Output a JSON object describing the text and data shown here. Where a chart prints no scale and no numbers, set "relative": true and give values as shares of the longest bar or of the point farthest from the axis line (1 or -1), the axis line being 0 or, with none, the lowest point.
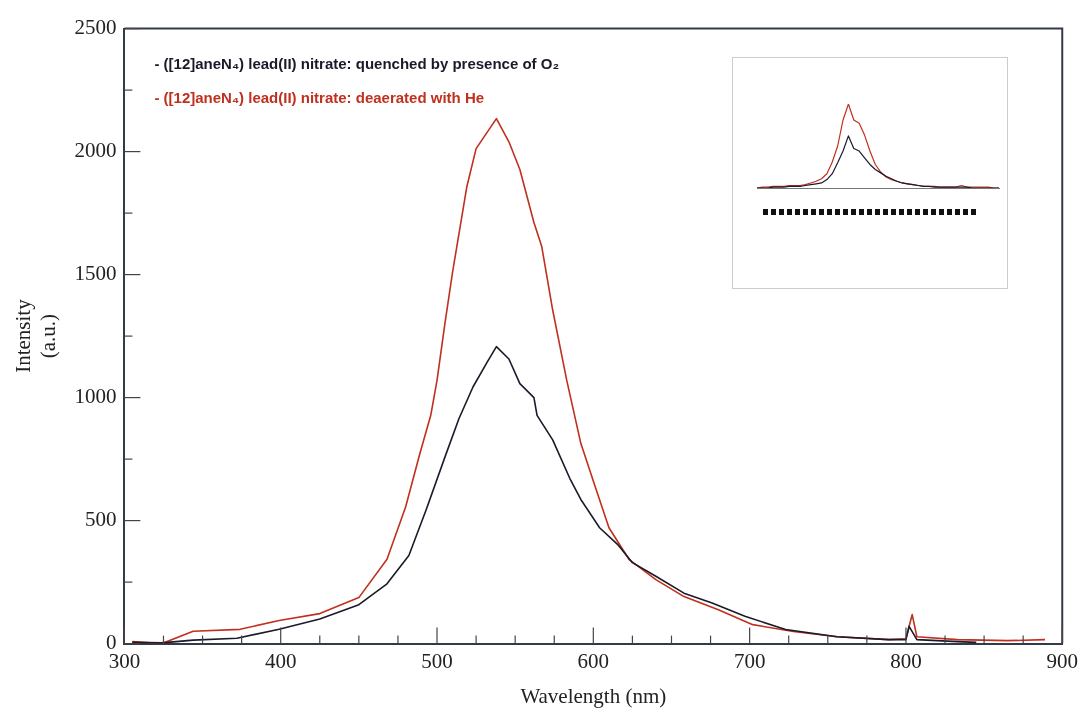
{
  "chart_data": [
    {
      "type": "line",
      "xlabel": "Wavelength (nm)",
      "ylabel": "Intensity\n(a.u.)",
      "xlim": [
        300,
        900
      ],
      "xticks": [
        300,
        {
          "value": 325,
          "label": null
        },
        {
          "value": 350,
          "label": null
        },
        {
          "value": 375,
          "label": null
        },
        400,
        {
          "value": 425,
          "label": null
        },
        {
          "value": 450,
          "label": null
        },
        {
          "value": 475,
          "label": null
        },
        500,
        {
          "value": 525,
          "label": null
        },
        {
          "value": 550,
          "label": null
        },
        {
          "value": 575,
          "label": null
        },
        600,
        {
          "value": 625,
          "label": null
        },
        {
          "value": 650,
          "label": null
        },
        {
          "value": 675,
          "label": null
        },
        700,
        {
          "value": 725,
          "label": null
        },
        {
          "value": 750,
          "label": null
        },
        {
          "value": 775,
          "label": null
        },
        800,
        {
          "value": 825,
          "label": null
        },
        {
          "value": 850,
          "label": null
        },
        {
          "value": 875,
          "label": null
        },
        900
      ],
      "ylim": [
        0,
        2500
      ],
      "yticks": [
        0,
        {
          "value": 250,
          "label": null
        },
        500,
        {
          "value": 750,
          "label": null
        },
        1000,
        {
          "value": 1250,
          "label": null
        },
        1500,
        {
          "value": 1750,
          "label": null
        },
        2000,
        {
          "value": 2250,
          "label": null
        },
        2500
      ],
      "legend": "top left",
      "line_style": "solid",
      "series": [
        {
          "name": "- ([12]aneN₄) lead(II) nitrate: quenched by presence of O₂",
          "color": "#1a1a2a",
          "x": [
            305,
            324,
            344,
            372,
            399,
            425,
            450,
            468,
            482,
            493,
            505,
            514,
            523,
            532,
            538,
            546,
            553,
            562,
            564,
            574,
            585,
            592,
            604,
            616,
            625,
            640,
            658,
            676,
            697,
            723,
            756,
            789,
            800,
            802,
            807,
            833,
            845
          ],
          "values": [
            5,
            3,
            14,
            22,
            58,
            100,
            158,
            243,
            358,
            543,
            757,
            914,
            1043,
            1143,
            1207,
            1157,
            1057,
            1000,
            928,
            828,
            671,
            586,
            471,
            400,
            329,
            274,
            205,
            165,
            111,
            57,
            28,
            16,
            16,
            70,
            16,
            8,
            5
          ]
        },
        {
          "name": "- ([12]aneN₄) lead(II) nitrate: deaerated with He",
          "color": "#c0301e",
          "x": [
            305,
            324,
            344,
            374,
            399,
            425,
            450,
            468,
            480,
            489,
            496,
            500,
            505,
            510,
            519,
            525,
            538,
            546,
            553,
            562,
            567,
            574,
            583,
            592,
            601,
            610,
            623,
            640,
            658,
            680,
            702,
            728,
            756,
            789,
            800,
            804,
            807,
            833,
            865,
            889
          ],
          "values": [
            8,
            0,
            50,
            58,
            94,
            122,
            187,
            343,
            557,
            772,
            928,
            1070,
            1299,
            1512,
            1855,
            2012,
            2134,
            2040,
            1927,
            1712,
            1614,
            1356,
            1070,
            814,
            642,
            471,
            341,
            260,
            191,
            138,
            77,
            49,
            28,
            16,
            20,
            118,
            28,
            16,
            12,
            16
          ]
        }
      ]
    },
    {
      "type": "line",
      "relative": true,
      "line_style": "solid",
      "categories": [
        null,
        null,
        null,
        null,
        null,
        null,
        null,
        null,
        null,
        null,
        null,
        null,
        null,
        null,
        null,
        null,
        null,
        null,
        null,
        null,
        null,
        null,
        null,
        null,
        null,
        null,
        null,
        null,
        null,
        null,
        null,
        null,
        null,
        null,
        null,
        null,
        null,
        null,
        null,
        null,
        null,
        null,
        null,
        null,
        null,
        null
      ],
      "series": [
        {
          "color": "#1a1a2a",
          "values": [
            0,
            0,
            0,
            0.01,
            0.01,
            0.01,
            0.02,
            0.02,
            0.02,
            0.03,
            0.04,
            0.05,
            0.06,
            0.1,
            0.17,
            0.3,
            0.44,
            0.62,
            0.47,
            0.44,
            0.36,
            0.28,
            0.22,
            0.18,
            0.14,
            0.11,
            0.08,
            0.06,
            0.05,
            0.04,
            0.03,
            0.02,
            0.02,
            0.01,
            0.01,
            0.01,
            0.01,
            0.01,
            0.01,
            0.01,
            0,
            0,
            0,
            0,
            0,
            0
          ]
        },
        {
          "color": "#c0301e",
          "values": [
            0,
            0.01,
            0.01,
            0.02,
            0.02,
            0.02,
            0.03,
            0.03,
            0.03,
            0.04,
            0.06,
            0.08,
            0.11,
            0.17,
            0.31,
            0.5,
            0.81,
            1,
            0.81,
            0.77,
            0.63,
            0.44,
            0.28,
            0.19,
            0.13,
            0.1,
            0.08,
            0.06,
            0.05,
            0.04,
            0.03,
            0.02,
            0.02,
            0.02,
            0.01,
            0.01,
            0.01,
            0.01,
            0.03,
            0.01,
            0.01,
            0.01,
            0.01,
            0.01,
            0,
            0
          ]
        }
      ]
    }
  ]
}
